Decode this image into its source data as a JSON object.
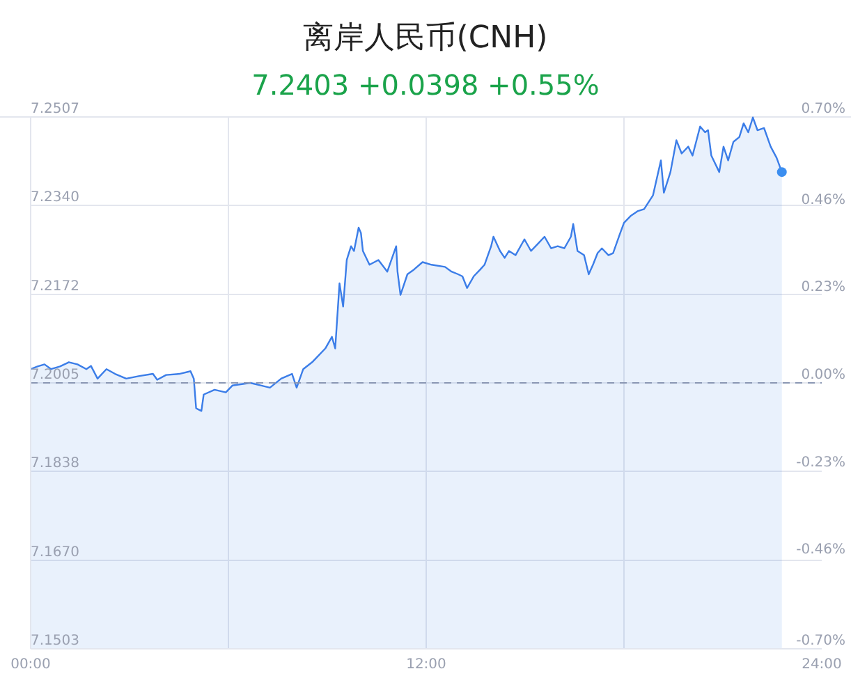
{
  "chart_data": {
    "type": "area",
    "title": "离岸人民币(CNH)",
    "subtitle": "7.2403 +0.0398 +0.55%",
    "x": [
      0.01,
      0.21,
      0.42,
      0.62,
      0.89,
      1.16,
      1.42,
      1.69,
      1.83,
      2.03,
      2.3,
      2.56,
      2.9,
      3.3,
      3.71,
      3.84,
      4.11,
      4.51,
      4.85,
      4.95,
      5.02,
      5.18,
      5.25,
      5.58,
      5.92,
      6.12,
      6.66,
      7.0,
      7.26,
      7.6,
      7.93,
      8.07,
      8.27,
      8.54,
      8.94,
      9.14,
      9.24,
      9.37,
      9.48,
      9.59,
      9.72,
      9.81,
      9.95,
      10.02,
      10.08,
      10.28,
      10.55,
      10.82,
      11.09,
      11.13,
      11.22,
      11.43,
      11.63,
      11.89,
      12.16,
      12.57,
      12.77,
      12.97,
      13.1,
      13.24,
      13.44,
      13.64,
      13.77,
      13.97,
      14.04,
      14.24,
      14.38,
      14.51,
      14.71,
      14.98,
      15.18,
      15.38,
      15.59,
      15.79,
      15.99,
      16.19,
      16.39,
      16.46,
      16.59,
      16.79,
      16.93,
      17.06,
      17.2,
      17.33,
      17.53,
      17.67,
      17.87,
      18.0,
      18.2,
      18.41,
      18.61,
      18.88,
      19.12,
      19.21,
      19.41,
      19.59,
      19.75,
      19.95,
      20.08,
      20.31,
      20.46,
      20.55,
      20.65,
      20.89,
      21.02,
      21.16,
      21.32,
      21.5,
      21.63,
      21.77,
      21.91,
      22.05,
      22.25,
      22.45,
      22.63,
      22.79
    ],
    "series": [
      {
        "color": "#3b7de8",
        "values": [
          7.2031,
          7.2036,
          7.204,
          7.2031,
          7.2036,
          7.2044,
          7.204,
          7.2031,
          7.2037,
          7.2013,
          7.2031,
          7.2022,
          7.2013,
          7.2018,
          7.2022,
          7.2011,
          7.202,
          7.2022,
          7.2027,
          7.2013,
          7.1957,
          7.1952,
          7.1983,
          7.1992,
          7.1987,
          7.2,
          7.2005,
          7.2,
          7.1996,
          7.2013,
          7.2022,
          7.1996,
          7.2031,
          7.2044,
          7.207,
          7.2092,
          7.207,
          7.2193,
          7.2149,
          7.2237,
          7.2263,
          7.2254,
          7.2298,
          7.2288,
          7.2254,
          7.2228,
          7.2237,
          7.2215,
          7.2263,
          7.2215,
          7.2171,
          7.221,
          7.2219,
          7.2233,
          7.2228,
          7.2224,
          7.2215,
          7.221,
          7.2206,
          7.2184,
          7.2206,
          7.2219,
          7.2228,
          7.2263,
          7.2281,
          7.2254,
          7.2241,
          7.2254,
          7.2246,
          7.2276,
          7.2254,
          7.2267,
          7.2281,
          7.2259,
          7.2263,
          7.2259,
          7.2281,
          7.2305,
          7.2254,
          7.2246,
          7.221,
          7.2228,
          7.225,
          7.2259,
          7.2246,
          7.225,
          7.2285,
          7.2307,
          7.232,
          7.2329,
          7.2333,
          7.2359,
          7.2425,
          7.2364,
          7.2403,
          7.2463,
          7.2438,
          7.2451,
          7.2434,
          7.2489,
          7.2478,
          7.2482,
          7.2434,
          7.2403,
          7.2451,
          7.2425,
          7.246,
          7.2469,
          7.2495,
          7.2478,
          7.2506,
          7.2482,
          7.2486,
          7.2451,
          7.243,
          7.2403
        ]
      },
      {
        "type": "scatter",
        "color": "#3b8ef0",
        "x": [
          22.79
        ],
        "values": [
          7.2403
        ]
      }
    ],
    "xlim": [
      0,
      24
    ],
    "xticks": [
      {
        "value": 0,
        "label": "00:00"
      },
      {
        "value": 6,
        "label": null
      },
      {
        "value": 12,
        "label": "12:00"
      },
      {
        "value": 18,
        "label": null
      },
      {
        "value": 24,
        "label": "24:00"
      }
    ],
    "ylim": [
      7.1503,
      7.2507
    ],
    "yticks": [
      7.1503,
      {
        "value": 7.167,
        "label": "7.1670"
      },
      7.1838,
      7.2005,
      7.2172,
      {
        "value": 7.234,
        "label": "7.2340"
      },
      7.2507
    ],
    "y2lim": [
      -0.7,
      0.7
    ],
    "y2ticks": [
      {
        "value": -0.7,
        "label": "-0.70%"
      },
      {
        "value": -0.46,
        "label": "-0.46%"
      },
      {
        "value": -0.23,
        "label": "-0.23%"
      },
      {
        "value": 0,
        "label": "0.00%"
      },
      {
        "value": 0.23,
        "label": "0.23%"
      },
      {
        "value": 0.46,
        "label": "0.46%"
      },
      {
        "value": 0.7,
        "label": "0.70%"
      }
    ],
    "ref_lines": [
      {
        "axis": "y",
        "value": 7.2005,
        "color": "#8a97b3",
        "line_style": "dashed"
      }
    ],
    "grid": true
  }
}
